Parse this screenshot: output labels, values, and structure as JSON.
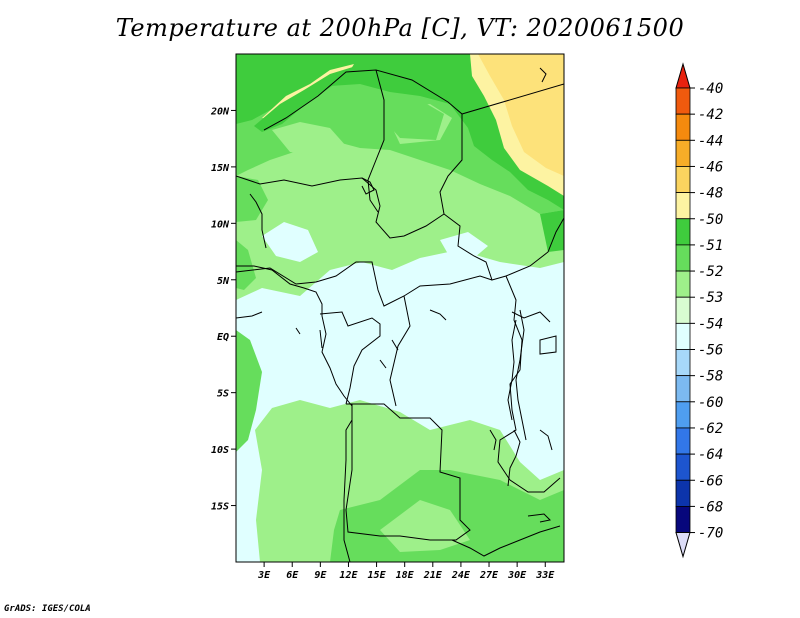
{
  "title": "Temperature at 200hPa [C], VT: 2020061500",
  "footer": "GrADS: IGES/COLA",
  "map": {
    "lat_range": [
      -20,
      25
    ],
    "lon_range": [
      0,
      35
    ],
    "y_ticks": [
      {
        "lat": 20,
        "label": "20N"
      },
      {
        "lat": 15,
        "label": "15N"
      },
      {
        "lat": 10,
        "label": "10N"
      },
      {
        "lat": 5,
        "label": "5N"
      },
      {
        "lat": 0,
        "label": "EQ"
      },
      {
        "lat": -5,
        "label": "5S"
      },
      {
        "lat": -10,
        "label": "10S"
      },
      {
        "lat": -15,
        "label": "15S"
      }
    ],
    "x_ticks": [
      {
        "lon": 3,
        "label": "3E"
      },
      {
        "lon": 6,
        "label": "6E"
      },
      {
        "lon": 9,
        "label": "9E"
      },
      {
        "lon": 12,
        "label": "12E"
      },
      {
        "lon": 15,
        "label": "15E"
      },
      {
        "lon": 18,
        "label": "18E"
      },
      {
        "lon": 21,
        "label": "21E"
      },
      {
        "lon": 24,
        "label": "24E"
      },
      {
        "lon": 27,
        "label": "27E"
      },
      {
        "lon": 30,
        "label": "30E"
      },
      {
        "lon": 33,
        "label": "33E"
      }
    ]
  },
  "colorbar": {
    "levels": [
      "-40",
      "-42",
      "-44",
      "-46",
      "-48",
      "-50",
      "-51",
      "-52",
      "-53",
      "-54",
      "-56",
      "-58",
      "-60",
      "-62",
      "-64",
      "-66",
      "-68",
      "-70"
    ],
    "colors": [
      "#e8220f",
      "#f05a0e",
      "#f58a0e",
      "#f7ad28",
      "#fbd45f",
      "#fdf3a2",
      "#3fcc3d",
      "#66dd5c",
      "#9ef08a",
      "#d8fcd1",
      "#e0ffff",
      "#a7d8f9",
      "#7cbaf1",
      "#4f9ef0",
      "#3277e8",
      "#1d55cf",
      "#0c34ab",
      "#07077c"
    ],
    "top_arrow_color": "#e8220f",
    "bottom_arrow_color": "#dcdcf7"
  },
  "palette": {
    "band_m50": "#fde27a",
    "band_m51": "#fdf3a2",
    "band_m52": "#3fcc3d",
    "band_m53": "#66dd5c",
    "band_m54": "#9ef08a",
    "band_m56": "#e0ffff"
  }
}
